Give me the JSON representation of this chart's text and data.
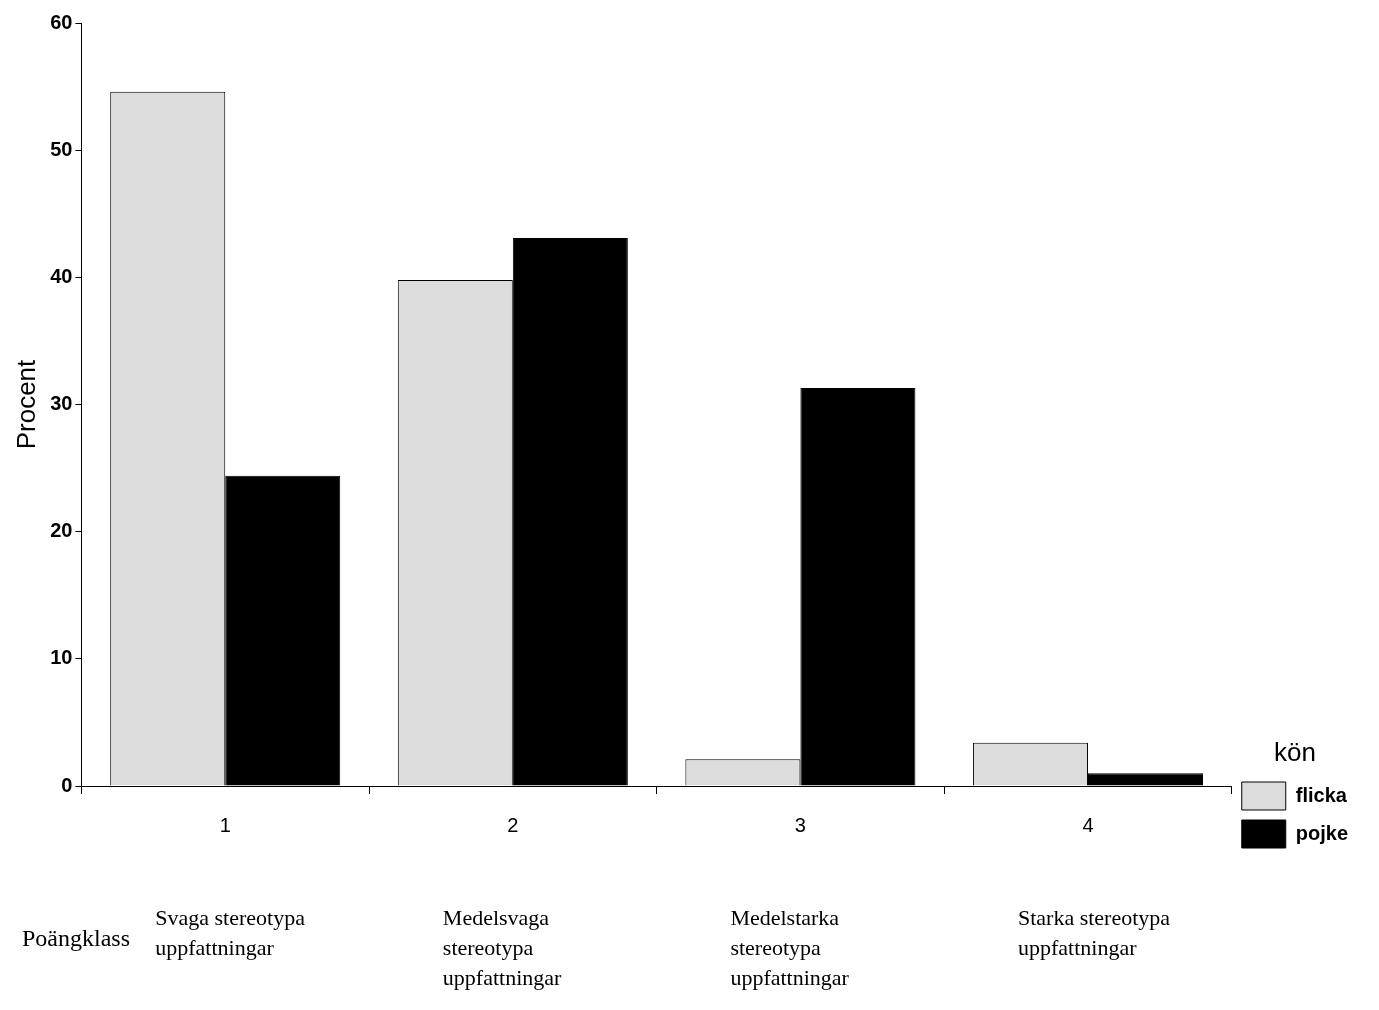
{
  "chart_data": {
    "type": "bar",
    "xlabel": "Poängklass",
    "ylabel": "Procent",
    "legend_title": "kön",
    "categories": [
      "1",
      "2",
      "3",
      "4"
    ],
    "series": [
      {
        "name": "flicka",
        "color": "#dcdcdc",
        "values": [
          54.6,
          39.8,
          2.1,
          3.4
        ]
      },
      {
        "name": "pojke",
        "color": "#000000",
        "values": [
          24.4,
          43.1,
          31.3,
          1.0
        ]
      }
    ],
    "ylim": [
      0,
      60
    ],
    "yticks": [
      0,
      10,
      20,
      30,
      40,
      50,
      60
    ],
    "grid": false,
    "legend": "right",
    "annotations": [
      "Svaga stereotypa uppfattningar",
      "Medelsvaga stereotypa uppfattningar",
      "Medelstarka stereotypa uppfattningar",
      "Starka stereotypa uppfattningar"
    ]
  }
}
